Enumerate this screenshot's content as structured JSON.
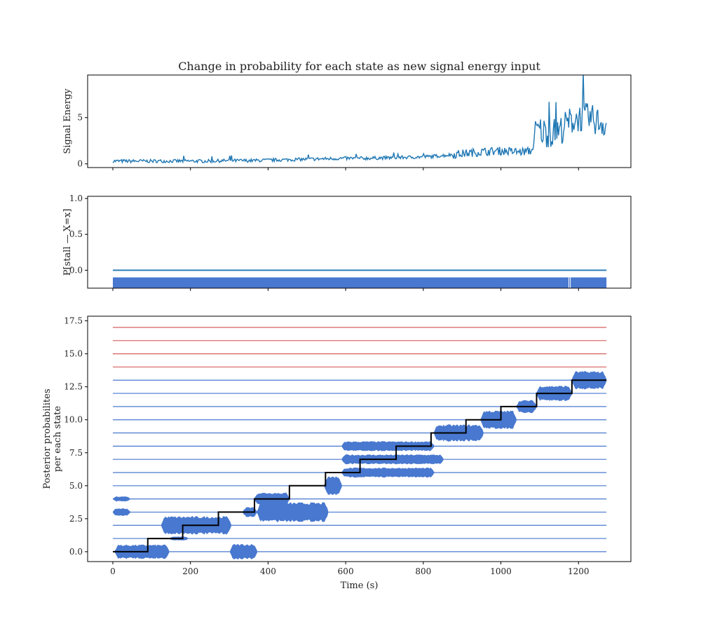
{
  "chart_data": [
    {
      "type": "line",
      "title": "Change in probability for each state as new signal energy input",
      "xlabel": "",
      "ylabel": "Signal Energy",
      "xlim": [
        -65,
        1335
      ],
      "ylim": [
        -0.4,
        9.6
      ],
      "xticks": [
        0,
        200,
        400,
        600,
        800,
        1000,
        1200
      ],
      "yticks": [
        0,
        5
      ],
      "ytick_labels": [
        "0",
        "5"
      ],
      "grid": false,
      "series": [
        {
          "color": "#1f77b4",
          "x": [
            0,
            50,
            100,
            150,
            200,
            250,
            300,
            350,
            400,
            450,
            500,
            550,
            600,
            650,
            700,
            750,
            800,
            850,
            900,
            950,
            1000,
            1050,
            1080,
            1090,
            1100,
            1125,
            1150,
            1175,
            1200,
            1225,
            1250,
            1272
          ],
          "y": [
            0.3,
            0.3,
            0.3,
            0.3,
            0.3,
            0.3,
            0.35,
            0.35,
            0.4,
            0.45,
            0.5,
            0.55,
            0.6,
            0.6,
            0.65,
            0.7,
            0.75,
            0.9,
            1.1,
            1.3,
            1.4,
            1.3,
            1.4,
            3.5,
            3.6,
            3.3,
            3.5,
            4.5,
            5.0,
            5.0,
            4.6,
            4.3
          ]
        }
      ]
    },
    {
      "type": "line",
      "title": "",
      "xlabel": "",
      "ylabel": "P[stall — X=x]",
      "xlim": [
        -65,
        1335
      ],
      "ylim": [
        -0.25,
        1.03
      ],
      "xticks": [
        0,
        200,
        400,
        600,
        800,
        1000,
        1200
      ],
      "yticks": [
        0.0,
        0.5,
        1.0
      ],
      "ytick_labels": [
        "0.0",
        "0.5",
        "1.0"
      ],
      "grid": false,
      "series": [
        {
          "color": "#1f77b4",
          "x": [
            0,
            1272
          ],
          "y": [
            0.0,
            0.0
          ]
        }
      ],
      "band": {
        "x": [
          0,
          1272
        ],
        "y": [
          -0.25,
          -0.1
        ],
        "color": "#4878cf"
      }
    },
    {
      "type": "line",
      "title": "",
      "xlabel": "Time (s)",
      "ylabel": "Posterior probabilites\nper each state",
      "xlim": [
        -65,
        1335
      ],
      "ylim": [
        -0.75,
        17.85
      ],
      "xticks": [
        0,
        200,
        400,
        600,
        800,
        1000,
        1200
      ],
      "xtick_labels": [
        "0",
        "200",
        "400",
        "600",
        "800",
        "1000",
        "1200"
      ],
      "yticks": [
        0.0,
        2.5,
        5.0,
        7.5,
        10.0,
        12.5,
        15.0,
        17.5
      ],
      "ytick_labels": [
        "0.0",
        "2.5",
        "5.0",
        "7.5",
        "10.0",
        "12.5",
        "15.0",
        "17.5"
      ],
      "grid": false,
      "state_levels_blue": [
        0,
        1,
        2,
        3,
        4,
        5,
        6,
        7,
        8,
        9,
        10,
        11,
        12,
        13
      ],
      "state_levels_red": [
        14,
        15,
        16,
        17
      ],
      "colors": {
        "state_line": "#4878cf",
        "inactive_state": "#d65f5f",
        "fill": "#4878cf",
        "most_likely": "#000000"
      },
      "state_x_range": [
        0,
        1272
      ],
      "most_likely_state": {
        "x": [
          0,
          90,
          180,
          272,
          365,
          455,
          548,
          637,
          730,
          820,
          910,
          1000,
          1092,
          1183,
          1272
        ],
        "y": [
          0,
          1,
          2,
          3,
          4,
          5,
          6,
          7,
          8,
          9,
          10,
          11,
          12,
          13,
          13
        ]
      },
      "posterior_bands": [
        {
          "level": 0,
          "x0": 5,
          "x1": 145,
          "amp": 0.55
        },
        {
          "level": 0,
          "x0": 302,
          "x1": 372,
          "amp": 0.6
        },
        {
          "level": 1,
          "x0": 145,
          "x1": 195,
          "amp": 0.15
        },
        {
          "level": 2,
          "x0": 125,
          "x1": 305,
          "amp": 0.7
        },
        {
          "level": 3,
          "x0": 0,
          "x1": 45,
          "amp": 0.3
        },
        {
          "level": 3,
          "x0": 335,
          "x1": 372,
          "amp": 0.4
        },
        {
          "level": 3,
          "x0": 372,
          "x1": 555,
          "amp": 0.75
        },
        {
          "level": 4,
          "x0": 0,
          "x1": 45,
          "amp": 0.2
        },
        {
          "level": 4,
          "x0": 365,
          "x1": 455,
          "amp": 0.5
        },
        {
          "level": 5,
          "x0": 545,
          "x1": 590,
          "amp": 0.75
        },
        {
          "level": 6,
          "x0": 590,
          "x1": 828,
          "amp": 0.38
        },
        {
          "level": 7,
          "x0": 590,
          "x1": 852,
          "amp": 0.38
        },
        {
          "level": 8,
          "x0": 590,
          "x1": 828,
          "amp": 0.38
        },
        {
          "level": 9,
          "x0": 828,
          "x1": 955,
          "amp": 0.65
        },
        {
          "level": 10,
          "x0": 948,
          "x1": 1040,
          "amp": 0.72
        },
        {
          "level": 11,
          "x0": 1040,
          "x1": 1092,
          "amp": 0.5
        },
        {
          "level": 12,
          "x0": 1092,
          "x1": 1183,
          "amp": 0.6
        },
        {
          "level": 13,
          "x0": 1183,
          "x1": 1272,
          "amp": 0.7
        }
      ]
    }
  ]
}
